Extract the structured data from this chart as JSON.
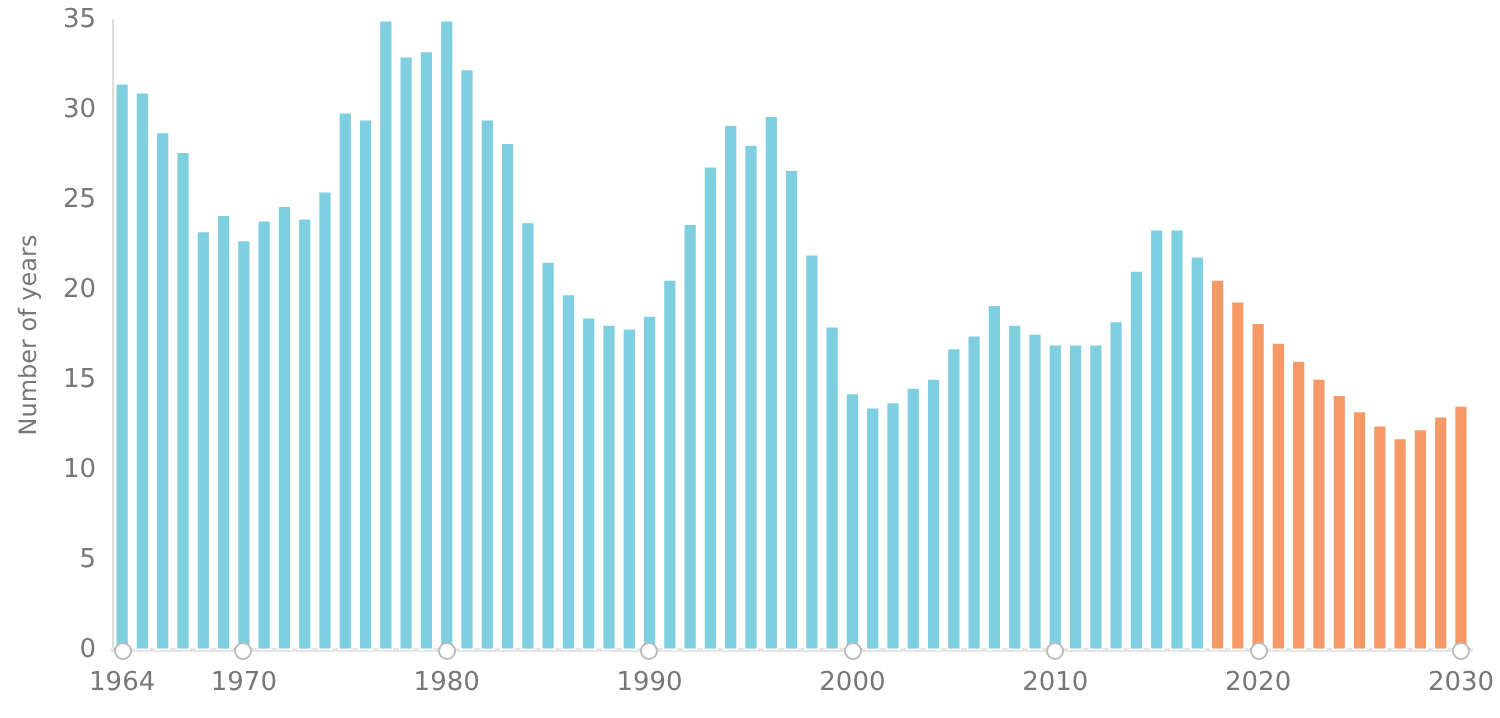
{
  "chart_data": {
    "type": "bar",
    "ylabel": "Number of years",
    "series": [
      {
        "color": "#7ecfe0",
        "x": [
          1964,
          1965,
          1966,
          1967,
          1968,
          1969,
          1970,
          1971,
          1972,
          1973,
          1974,
          1975,
          1976,
          1977,
          1978,
          1979,
          1980,
          1981,
          1982,
          1983,
          1984,
          1985,
          1986,
          1987,
          1988,
          1989,
          1990,
          1991,
          1992,
          1993,
          1994,
          1995,
          1996,
          1997,
          1998,
          1999,
          2000,
          2001,
          2002,
          2003,
          2004,
          2005,
          2006,
          2007,
          2008,
          2009,
          2010,
          2011,
          2012,
          2013,
          2014,
          2015,
          2016,
          2017
        ],
        "values": [
          31.5,
          31,
          28.8,
          27.7,
          23.3,
          24.2,
          22.8,
          23.9,
          24.7,
          24,
          25.5,
          29.9,
          29.5,
          35,
          33,
          33.3,
          35,
          32.3,
          29.5,
          28.2,
          23.8,
          21.6,
          19.8,
          18.5,
          18.1,
          17.9,
          18.6,
          20.6,
          23.7,
          26.9,
          29.2,
          28.1,
          29.7,
          26.7,
          22,
          18,
          14.3,
          13.5,
          13.8,
          14.6,
          15.1,
          16.8,
          17.5,
          19.2,
          18.1,
          17.6,
          17,
          17,
          17,
          18.3,
          21.1,
          23.4,
          23.4,
          21.9
        ]
      },
      {
        "color": "#f59a66",
        "x": [
          2018,
          2019,
          2020,
          2021,
          2022,
          2023,
          2024,
          2025,
          2026,
          2027,
          2028,
          2029,
          2030
        ],
        "values": [
          20.6,
          19.4,
          18.2,
          17.1,
          16.1,
          15.1,
          14.2,
          13.3,
          12.5,
          11.8,
          12.3,
          13,
          13.6
        ]
      }
    ],
    "xlim": [
      1963.5,
      2030.5
    ],
    "xticks": [
      1964,
      1970,
      1980,
      1990,
      2000,
      2010,
      2020,
      2030
    ],
    "ylim": [
      0,
      35
    ],
    "yticks": [
      0,
      5,
      10,
      15,
      20,
      25,
      30,
      35
    ],
    "grid": false
  }
}
